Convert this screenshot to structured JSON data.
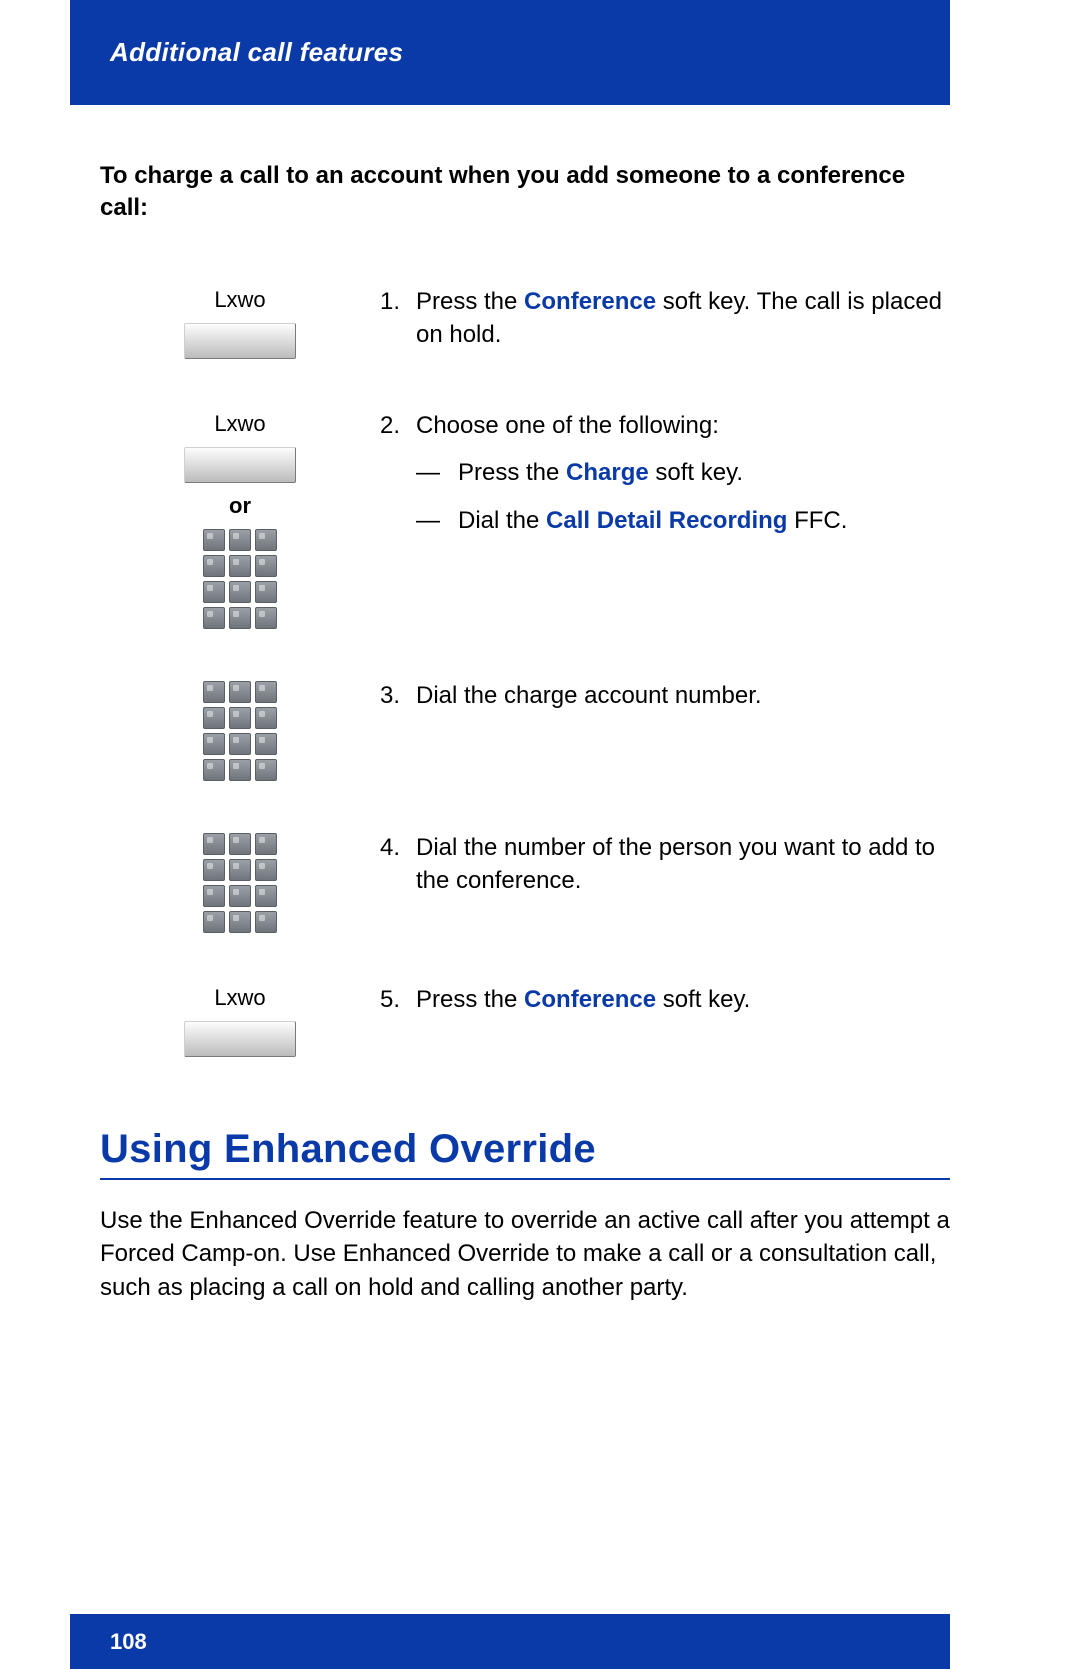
{
  "colors": {
    "brand_blue": "#0a3aa7",
    "background": "#ffffff",
    "text": "#000000",
    "header_text": "#ffffff"
  },
  "header": {
    "title": "Additional call features"
  },
  "intro": "To charge a call to an account when you add someone to a conference call:",
  "steps": [
    {
      "icon": {
        "type": "softkey",
        "label": "Lxwo"
      },
      "num": "1.",
      "pre": "Press the ",
      "kw": "Conference",
      "post": " soft key. The call is placed on hold."
    },
    {
      "icon": {
        "type": "softkey_or_keypad",
        "label": "Lxwo",
        "or": "or"
      },
      "num": "2.",
      "pre": "Choose one of the following:",
      "sub": [
        {
          "dash": "—",
          "pre": "Press the ",
          "kw": "Charge",
          "post": " soft key."
        },
        {
          "dash": "—",
          "pre": "Dial the ",
          "kw": "Call Detail Recording",
          "post": " FFC."
        }
      ]
    },
    {
      "icon": {
        "type": "keypad"
      },
      "num": "3.",
      "pre": "Dial the charge account number."
    },
    {
      "icon": {
        "type": "keypad"
      },
      "num": "4.",
      "pre": "Dial the number of the person you want to add to the conference."
    },
    {
      "icon": {
        "type": "softkey",
        "label": "Lxwo"
      },
      "num": "5.",
      "pre": "Press the ",
      "kw": "Conference",
      "post": " soft key."
    }
  ],
  "section": {
    "heading": "Using Enhanced Override",
    "body": "Use the Enhanced Override feature to override an active call after you attempt a Forced Camp-on. Use Enhanced Override to make a call or a consultation call, such as placing a call on hold and calling another party."
  },
  "footer": {
    "page": "108"
  }
}
